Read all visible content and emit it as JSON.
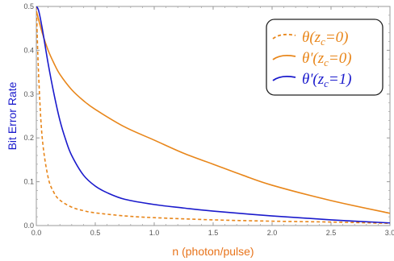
{
  "chart_data": {
    "type": "line",
    "xlabel": "n (photon/pulse)",
    "ylabel": "Bit Error Rate",
    "xlim": [
      0,
      3.0
    ],
    "ylim": [
      0,
      0.5
    ],
    "x_ticks": [
      "0.0",
      "0.5",
      "1.0",
      "1.5",
      "2.0",
      "2.5",
      "3.0"
    ],
    "y_ticks": [
      "0.0",
      "0.1",
      "0.2",
      "0.3",
      "0.4",
      "0.5"
    ],
    "x_tick_values": [
      0,
      0.5,
      1.0,
      1.5,
      2.0,
      2.5,
      3.0
    ],
    "y_tick_values": [
      0,
      0.1,
      0.2,
      0.3,
      0.4,
      0.5
    ],
    "legend_position": "top-right",
    "grid": false,
    "colors": {
      "axis_title_x": "#e8731a",
      "axis_title_y": "#1a1acc"
    },
    "series": [
      {
        "name": "θ(zc=0)",
        "legend": {
          "main": "θ(z",
          "sub": "c",
          "tail": "=0)"
        },
        "color": "#e8861a",
        "dash": "dashed",
        "x": [
          0,
          0.02,
          0.05,
          0.1,
          0.15,
          0.2,
          0.3,
          0.4,
          0.5,
          0.75,
          1.0,
          1.5,
          2.0,
          2.5,
          3.0
        ],
        "y": [
          0.5,
          0.34,
          0.2,
          0.11,
          0.075,
          0.058,
          0.042,
          0.034,
          0.029,
          0.022,
          0.018,
          0.013,
          0.01,
          0.008,
          0.005
        ]
      },
      {
        "name": "θ'(zc=0)",
        "legend": {
          "main": "θ'(z",
          "sub": "c",
          "tail": "=0)"
        },
        "color": "#e8861a",
        "dash": "solid",
        "x": [
          0,
          0.05,
          0.1,
          0.15,
          0.2,
          0.3,
          0.4,
          0.5,
          0.75,
          1.0,
          1.25,
          1.5,
          1.75,
          2.0,
          2.5,
          3.0
        ],
        "y": [
          0.49,
          0.44,
          0.4,
          0.37,
          0.345,
          0.31,
          0.285,
          0.265,
          0.225,
          0.195,
          0.165,
          0.14,
          0.115,
          0.092,
          0.057,
          0.028
        ]
      },
      {
        "name": "θ'(zc=1)",
        "legend": {
          "main": "θ'(z",
          "sub": "c",
          "tail": "=1)"
        },
        "color": "#1a1acc",
        "dash": "solid",
        "x": [
          0,
          0.02,
          0.05,
          0.1,
          0.15,
          0.2,
          0.25,
          0.3,
          0.4,
          0.5,
          0.6,
          0.75,
          1.0,
          1.25,
          1.5,
          2.0,
          2.5,
          3.0
        ],
        "y": [
          0.5,
          0.49,
          0.45,
          0.37,
          0.3,
          0.24,
          0.195,
          0.16,
          0.115,
          0.09,
          0.075,
          0.06,
          0.048,
          0.04,
          0.033,
          0.022,
          0.013,
          0.006
        ]
      }
    ]
  }
}
